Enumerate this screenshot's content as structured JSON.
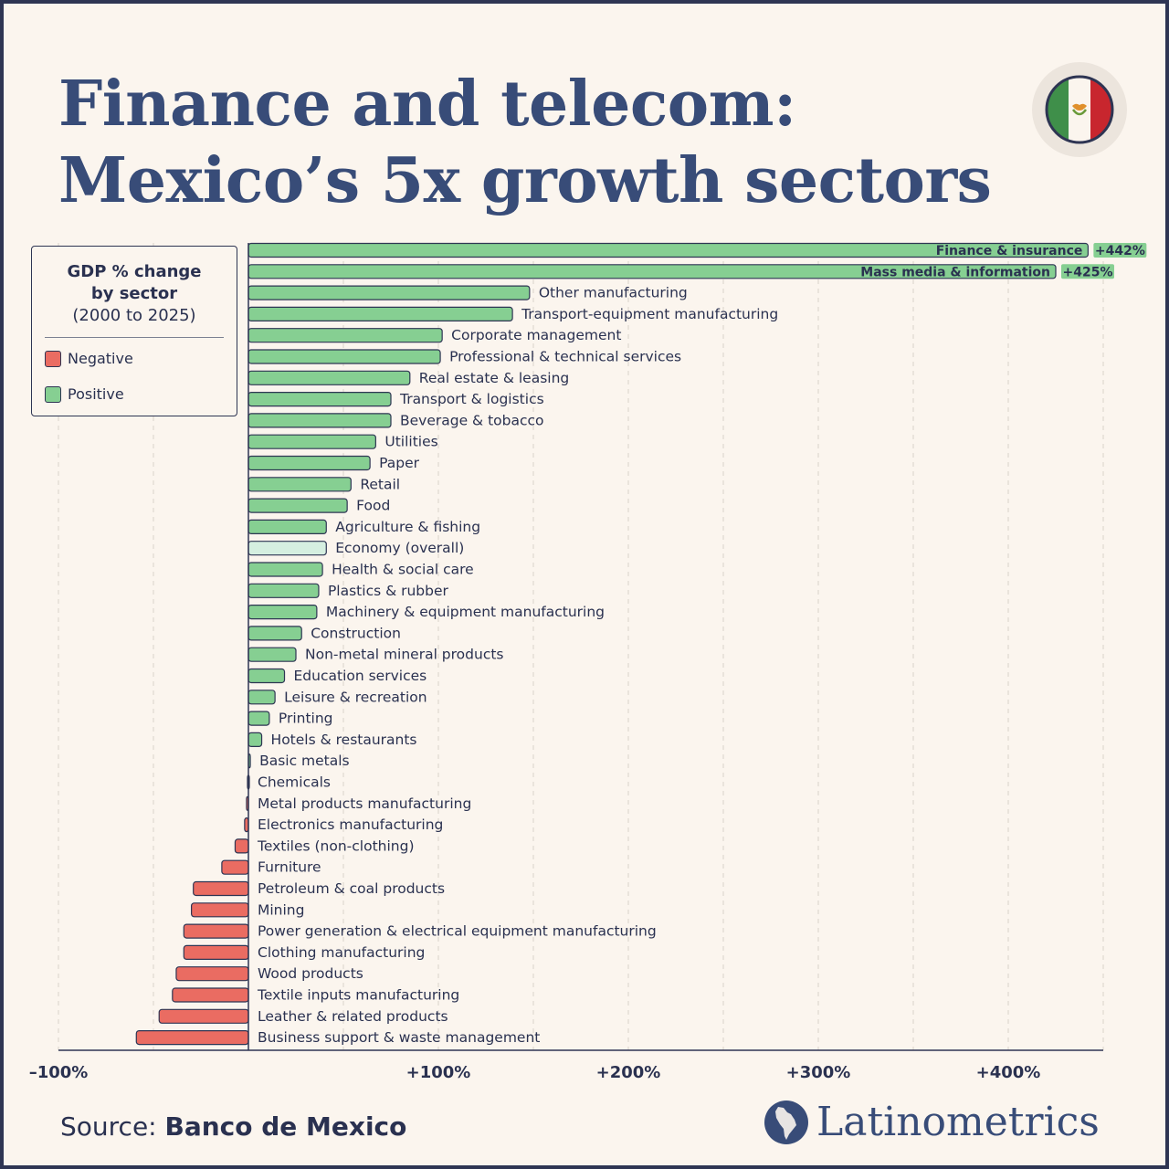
{
  "title": {
    "line1": "Finance and telecom:",
    "line2": "Mexico’s 5x growth sectors"
  },
  "legend": {
    "title_line1": "GDP % change",
    "title_line2": "by sector",
    "subtitle": "(2000 to 2025)",
    "negative_label": "Negative",
    "positive_label": "Positive"
  },
  "colors": {
    "positive": "#86cf92",
    "negative": "#ea6c62",
    "economy": "#d5efe0",
    "outline": "#2e3553",
    "text": "#2a3150",
    "background": "#fbf5ee",
    "flag_green": "#3f8f4a",
    "flag_red": "#c8262e",
    "brand": "#384c78"
  },
  "chart_data": {
    "type": "bar",
    "orientation": "horizontal",
    "xlim": [
      -100,
      450
    ],
    "x_ticks": [
      -100,
      100,
      200,
      300,
      400
    ],
    "x_tick_labels": [
      "–100%",
      "+100%",
      "+200%",
      "+300%",
      "+400%"
    ],
    "grid": true,
    "categories": [
      "Finance & insurance",
      "Mass media & information",
      "Other manufacturing",
      "Transport-equipment manufacturing",
      "Corporate management",
      "Professional & technical services",
      "Real estate & leasing",
      "Transport & logistics",
      "Beverage & tobacco",
      "Utilities",
      "Paper",
      "Retail",
      "Food",
      "Agriculture & fishing",
      "Economy (overall)",
      "Health & social care",
      "Plastics & rubber",
      "Machinery & equipment manufacturing",
      "Construction",
      "Non-metal mineral products",
      "Education services",
      "Leisure & recreation",
      "Printing",
      "Hotels & restaurants",
      "Basic metals",
      "Chemicals",
      "Metal products manufacturing",
      "Electronics manufacturing",
      "Textiles (non-clothing)",
      "Furniture",
      "Petroleum & coal products",
      "Mining",
      "Power generation & electrical equipment manufacturing",
      "Clothing manufacturing",
      "Wood products",
      "Textile inputs manufacturing",
      "Leather & related products",
      "Business support & waste management"
    ],
    "values": [
      442,
      425,
      148,
      139,
      102,
      101,
      85,
      75,
      75,
      67,
      64,
      54,
      52,
      41,
      41,
      39,
      37,
      36,
      28,
      25,
      19,
      14,
      11,
      7,
      1,
      0,
      -1,
      -2,
      -7,
      -14,
      -29,
      -30,
      -34,
      -34,
      -38,
      -40,
      -47,
      -59
    ],
    "highlight": "Economy (overall)",
    "data_labels": {
      "Finance & insurance": "+442%",
      "Mass media & information": "+425%"
    }
  },
  "source": {
    "prefix": "Source:",
    "name": "Banco de Mexico"
  },
  "brand": "Latinometrics"
}
